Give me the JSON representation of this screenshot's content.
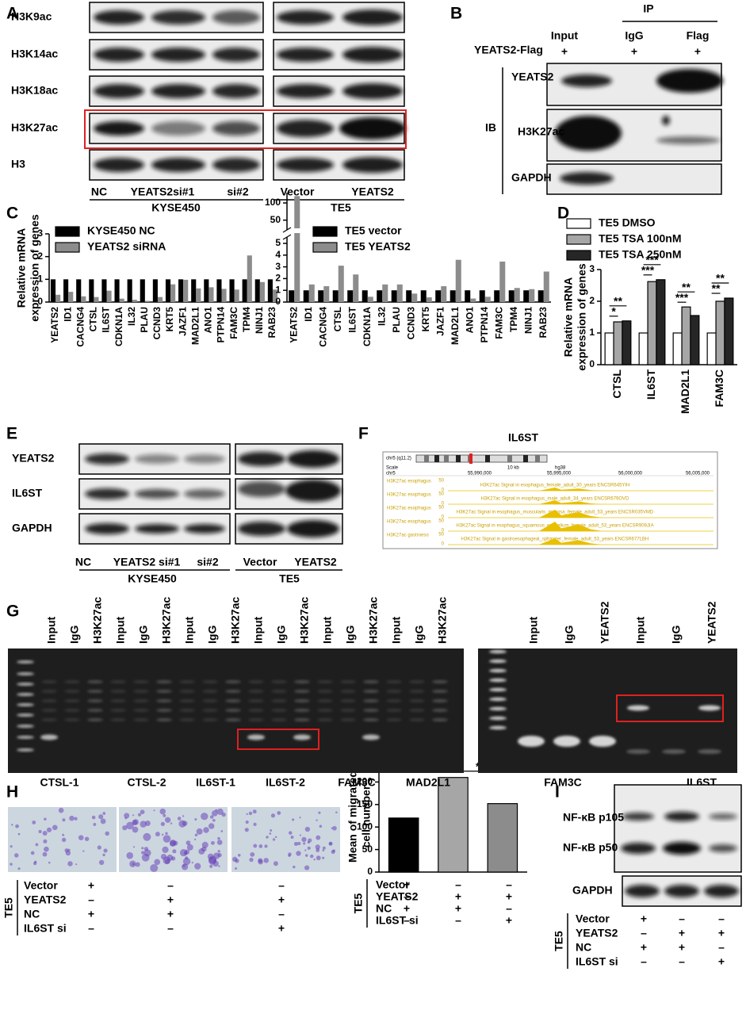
{
  "letters": [
    "A",
    "B",
    "C",
    "D",
    "E",
    "F",
    "G",
    "H",
    "I"
  ],
  "A": {
    "rows": [
      "H3K9ac",
      "H3K14ac",
      "H3K18ac",
      "H3K27ac",
      "H3"
    ],
    "left_lanes": [
      "NC",
      "YEATS2si#1",
      "si#2"
    ],
    "left_cell": "KYSE450",
    "right_lanes": [
      "Vector",
      "YEATS2"
    ],
    "right_cell": "TE5"
  },
  "B": {
    "ip": "IP",
    "lanes": [
      "Input",
      "IgG",
      "Flag"
    ],
    "construct": "YEATS2-Flag",
    "construct_marks": [
      "+",
      "+",
      "+"
    ],
    "rows": [
      "YEATS2",
      "H3K27ac",
      "GAPDH"
    ],
    "ib": "IB"
  },
  "E": {
    "rows": [
      "YEATS2",
      "IL6ST",
      "GAPDH"
    ],
    "left_lanes": [
      "NC",
      "YEATS2 si#1",
      "si#2"
    ],
    "left_cell": "KYSE450",
    "right_lanes": [
      "Vector",
      "YEATS2"
    ],
    "right_cell": "TE5"
  },
  "F": {
    "title": "IL6ST",
    "chrom": "chr5 (q11.2)",
    "scale": "Scale",
    "scale_len": "10 kb",
    "assembly": "hg38",
    "chr": "chr5",
    "positions": [
      "55,990,000",
      "55,995,000",
      "56,000,000",
      "56,005,000"
    ],
    "track_max": 50,
    "track_min": 0,
    "tracks": [
      {
        "label": "H3K27ac esophagus",
        "title": "H3K27ac Signal in esophagus_female_adult_30_years ENCSR645YIH"
      },
      {
        "label": "H3K27ac esophagus",
        "title": "H3K27ac Signal in esophagus_male_adult_34_years ENCSR679OVD"
      },
      {
        "label": "H3K27ac esophagus",
        "title": "H3K27ac Signal in esophagus_muscularis_mucosa_female_adult_53_years ENCSR035VMD"
      },
      {
        "label": "H3K27ac esophagus",
        "title": "H3K27ac Signal in esophagus_squamous_epithelium_female_adult_53_years ENCSR909JIA"
      },
      {
        "label": "H3K27ac gastroeso",
        "title": "H3K27ac Signal in gastroesophageal_sphincter_female_adult_53_years ENCSR677LBH"
      }
    ]
  },
  "G": {
    "left_lanes": [
      "Input",
      "IgG",
      "H3K27ac",
      "Input",
      "IgG",
      "H3K27ac",
      "Input",
      "IgG",
      "H3K27ac",
      "Input",
      "IgG",
      "H3K27ac",
      "Input",
      "IgG",
      "H3K27ac",
      "Input",
      "IgG",
      "H3K27ac"
    ],
    "left_targets": [
      "CTSL-1",
      "CTSL-2",
      "IL6ST-1",
      "IL6ST-2",
      "FAM3C",
      "MAD2L1"
    ],
    "right_lanes": [
      "Input",
      "IgG",
      "YEATS2",
      "Input",
      "IgG",
      "YEATS2"
    ],
    "right_targets": [
      "FAM3C",
      "IL6ST"
    ]
  },
  "H": {
    "cell": "TE5",
    "rows": [
      {
        "label": "Vector",
        "marks": [
          "+",
          "–",
          "–"
        ]
      },
      {
        "label": "YEATS2",
        "marks": [
          "–",
          "+",
          "+"
        ]
      },
      {
        "label": "NC",
        "marks": [
          "+",
          "+",
          "–"
        ]
      },
      {
        "label": "IL6ST si",
        "marks": [
          "–",
          "–",
          "+"
        ]
      }
    ]
  },
  "H_chart_table": {
    "cell": "TE5",
    "rows": [
      {
        "label": "Vector",
        "marks": [
          "+",
          "–",
          "–"
        ]
      },
      {
        "label": "YEATS2",
        "marks": [
          "–",
          "+",
          "+"
        ]
      },
      {
        "label": "NC",
        "marks": [
          "+",
          "+",
          "–"
        ]
      },
      {
        "label": "IL6ST si",
        "marks": [
          "–",
          "–",
          "+"
        ]
      }
    ]
  },
  "I": {
    "rows": [
      "NF-κB p105",
      "NF-κB p50",
      "GAPDH"
    ],
    "cell": "TE5",
    "table": [
      {
        "label": "Vector",
        "marks": [
          "+",
          "–",
          "–"
        ]
      },
      {
        "label": "YEATS2",
        "marks": [
          "–",
          "+",
          "+"
        ]
      },
      {
        "label": "NC",
        "marks": [
          "+",
          "+",
          "–"
        ]
      },
      {
        "label": "IL6ST si",
        "marks": [
          "–",
          "–",
          "+"
        ]
      }
    ]
  },
  "chart_data": [
    {
      "type": "bar",
      "ylabel": [
        "Relative mRNA",
        "expression of genes"
      ],
      "categories": [
        "YEATS2",
        "ID1",
        "CACNG4",
        "CTSL",
        "IL6ST",
        "CDKN1A",
        "IL32",
        "PLAU",
        "CCND3",
        "KRT5",
        "JAZF1",
        "MAD2L1",
        "ANO1",
        "PTPN14",
        "FAM3C",
        "TPM4",
        "NINJ1",
        "RAB23"
      ],
      "series": [
        {
          "name": "KYSE450 NC",
          "color": "#000000",
          "values": [
            1,
            1,
            1,
            1,
            1,
            1,
            1,
            1,
            1,
            1,
            1,
            1,
            1,
            1,
            1,
            1,
            1,
            1
          ]
        },
        {
          "name": "YEATS2 siRNA",
          "color": "#8c8c8c",
          "values": [
            0.32,
            0.45,
            0.25,
            0.22,
            0.5,
            0.15,
            0.1,
            0.05,
            0.22,
            0.78,
            0.98,
            0.6,
            0.65,
            0.58,
            0.55,
            2.05,
            0.88,
            0.55
          ]
        }
      ],
      "ylim": [
        0,
        3
      ],
      "yticks": [
        0,
        1,
        2,
        3
      ]
    },
    {
      "type": "bar",
      "categories": [
        "YEATS2",
        "ID1",
        "CACNG4",
        "CTSL",
        "IL6ST",
        "CDKN1A",
        "IL32",
        "PLAU",
        "CCND3",
        "KRT5",
        "JAZF1",
        "MAD2L1",
        "ANO1",
        "PTPN14",
        "FAM3C",
        "TPM4",
        "NINJ1",
        "RAB23"
      ],
      "series": [
        {
          "name": "TE5 vector",
          "color": "#000000",
          "values": [
            1,
            1,
            1,
            1,
            1,
            1,
            1,
            1,
            1,
            1,
            1,
            1,
            1,
            1,
            1,
            1,
            1,
            1
          ]
        },
        {
          "name": "TE5 YEATS2",
          "color": "#8c8c8c",
          "values": [
            120,
            1.5,
            1.35,
            3.1,
            2.35,
            0.45,
            1.5,
            1.5,
            0.72,
            0.4,
            1.35,
            3.6,
            0.3,
            0.45,
            3.45,
            1.2,
            1.1,
            2.6
          ]
        }
      ],
      "ylim": [
        0,
        130
      ],
      "axis_break": [
        5,
        40
      ],
      "yticks": [
        0,
        1,
        2,
        3,
        4,
        5,
        50,
        100
      ]
    },
    {
      "type": "bar",
      "ylabel": [
        "Relative mRNA",
        "expression of genes"
      ],
      "categories": [
        "CTSL",
        "IL6ST",
        "MAD2L1",
        "FAM3C"
      ],
      "series": [
        {
          "name": "TE5 DMSO",
          "color": "#ffffff",
          "values": [
            1,
            1,
            1,
            1
          ]
        },
        {
          "name": "TE5 TSA 100nM",
          "color": "#a6a6a6",
          "values": [
            1.35,
            2.62,
            1.82,
            2.0
          ]
        },
        {
          "name": "TE5 TSA 250nM",
          "color": "#262626",
          "values": [
            1.38,
            2.68,
            1.55,
            2.1
          ]
        }
      ],
      "ylim": [
        0,
        3
      ],
      "yticks": [
        0,
        1,
        2,
        3
      ],
      "annotations": [
        {
          "category": "CTSL",
          "text": "*"
        },
        {
          "category": "CTSL",
          "text": "**"
        },
        {
          "category": "IL6ST",
          "text": "***"
        },
        {
          "category": "IL6ST",
          "text": "***"
        },
        {
          "category": "MAD2L1",
          "text": "***"
        },
        {
          "category": "MAD2L1",
          "text": "**"
        },
        {
          "category": "FAM3C",
          "text": "**"
        },
        {
          "category": "FAM3C",
          "text": "**"
        }
      ]
    },
    {
      "type": "bar",
      "ylabel": [
        "Mean of migrated",
        "cell number"
      ],
      "categories": [
        null,
        null,
        null
      ],
      "values": [
        120,
        210,
        152
      ],
      "colors": [
        "#000000",
        "#a6a6a6",
        "#8c8c8c"
      ],
      "ylim": [
        0,
        250
      ],
      "yticks": [
        0,
        50,
        100,
        150,
        200,
        250
      ],
      "annotations": [
        {
          "text": "**"
        },
        {
          "text": "*"
        }
      ]
    }
  ]
}
